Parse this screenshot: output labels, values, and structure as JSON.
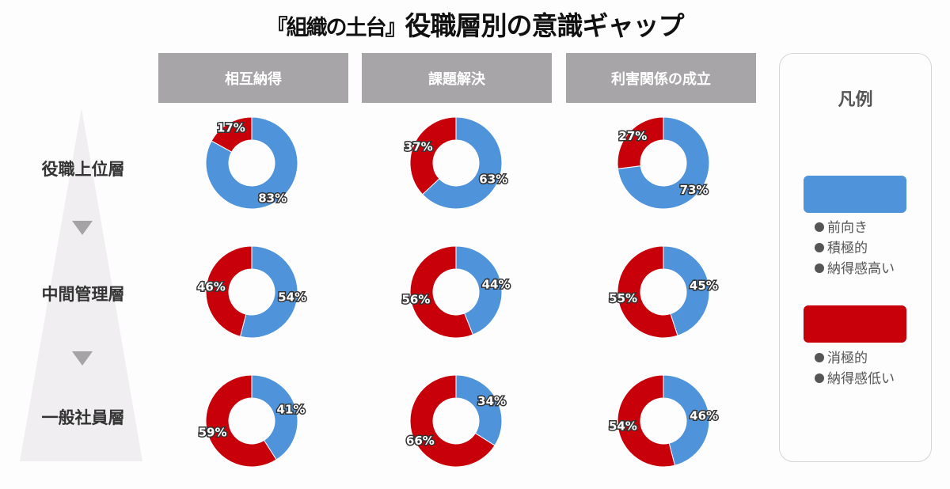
{
  "title": {
    "prefix": "『組織の土台』",
    "main": "役職層別の意識ギャップ"
  },
  "columns": [
    "相互納得",
    "課題解決",
    "利害関係の成立"
  ],
  "rows": [
    "役職上位層",
    "中間管理層",
    "一般社員層"
  ],
  "colors": {
    "positive": "#4f93da",
    "negative": "#c8000a",
    "header_bg": "#a7a5a7",
    "pyramid": "#f0eef0",
    "arrow": "#a5a3a5"
  },
  "legend": {
    "title": "凡例",
    "positive": {
      "color": "#4f93da",
      "items": [
        "前向き",
        "積極的",
        "納得感高い"
      ]
    },
    "negative": {
      "color": "#c8000a",
      "items": [
        "消極的",
        "納得感低い"
      ]
    }
  },
  "chart_data": {
    "type": "pie",
    "subtype": "donut-grid",
    "title": "『組織の土台』役職層別の意識ギャップ",
    "categories": [
      "相互納得",
      "課題解決",
      "利害関係の成立"
    ],
    "groups": [
      "役職上位層",
      "中間管理層",
      "一般社員層"
    ],
    "series": [
      {
        "name": "前向き・積極的・納得感高い",
        "color": "#4f93da",
        "values": [
          [
            83,
            63,
            73
          ],
          [
            54,
            44,
            45
          ],
          [
            41,
            34,
            46
          ]
        ]
      },
      {
        "name": "消極的・納得感低い",
        "color": "#c8000a",
        "values": [
          [
            17,
            37,
            27
          ],
          [
            46,
            56,
            55
          ],
          [
            59,
            66,
            54
          ]
        ]
      }
    ],
    "unit": "%",
    "legend_position": "right"
  }
}
